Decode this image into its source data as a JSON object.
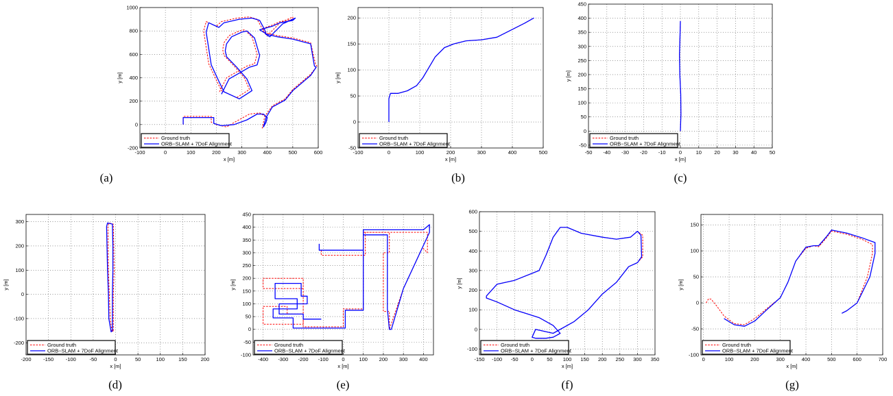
{
  "legend": {
    "ground_truth": "Ground truth",
    "estimate": "ORB−SLAM + 7DoF Alignment"
  },
  "colors": {
    "ground_truth": "#ff0000",
    "estimate": "#0000ff"
  },
  "chart_data": [
    {
      "type": "line",
      "panel_label": "(a)",
      "xlabel": "x [m]",
      "ylabel": "y [m]",
      "xlim": [
        -100,
        600
      ],
      "ylim": [
        -200,
        1000
      ],
      "xticks": [
        -100,
        0,
        100,
        200,
        300,
        400,
        500,
        600
      ],
      "yticks": [
        -200,
        0,
        200,
        400,
        600,
        800,
        1000
      ],
      "grid": true,
      "legend_position": "bottom-left",
      "series": [
        {
          "name": "Ground truth",
          "style": "dashed",
          "x": [
            70,
            70,
            180,
            180,
            200,
            240,
            280,
            330,
            370,
            400,
            395,
            380,
            390,
            420,
            470,
            500,
            570,
            595,
            590,
            570,
            500,
            440,
            400,
            380,
            420,
            450,
            500,
            500,
            450,
            400,
            390,
            380,
            360,
            330,
            280,
            220,
            200,
            180,
            160,
            150,
            170,
            200,
            220,
            280,
            330,
            310,
            270,
            230,
            225,
            230,
            250,
            290,
            310,
            340,
            360,
            350,
            320,
            280,
            240,
            210
          ],
          "y": [
            0,
            70,
            70,
            20,
            0,
            -20,
            30,
            90,
            100,
            60,
            20,
            -30,
            70,
            160,
            220,
            300,
            430,
            500,
            510,
            700,
            740,
            760,
            780,
            820,
            850,
            880,
            900,
            920,
            870,
            760,
            780,
            820,
            900,
            920,
            910,
            880,
            840,
            860,
            880,
            800,
            520,
            380,
            290,
            230,
            300,
            400,
            500,
            590,
            640,
            700,
            760,
            800,
            810,
            750,
            600,
            520,
            500,
            450,
            400,
            270
          ]
        },
        {
          "name": "ORB−SLAM + 7DoF Alignment",
          "style": "solid",
          "x": [
            70,
            70,
            190,
            190,
            220,
            270,
            320,
            360,
            385,
            400,
            395,
            385,
            395,
            420,
            470,
            500,
            570,
            592,
            585,
            570,
            500,
            440,
            400,
            370,
            420,
            450,
            500,
            510,
            460,
            410,
            395,
            390,
            370,
            340,
            290,
            230,
            210,
            190,
            170,
            160,
            180,
            210,
            230,
            290,
            340,
            320,
            280,
            240,
            235,
            240,
            260,
            300,
            320,
            350,
            370,
            360,
            330,
            290,
            250,
            220
          ],
          "y": [
            0,
            60,
            60,
            10,
            -10,
            0,
            40,
            90,
            90,
            60,
            20,
            -20,
            60,
            150,
            210,
            290,
            420,
            490,
            500,
            690,
            730,
            750,
            770,
            810,
            840,
            870,
            890,
            910,
            860,
            750,
            770,
            810,
            890,
            910,
            900,
            870,
            830,
            850,
            870,
            790,
            510,
            370,
            280,
            220,
            290,
            390,
            490,
            580,
            630,
            690,
            750,
            790,
            800,
            740,
            590,
            510,
            490,
            440,
            390,
            260
          ]
        }
      ]
    },
    {
      "type": "line",
      "panel_label": "(b)",
      "xlabel": "x [m]",
      "ylabel": "y [m]",
      "xlim": [
        -100,
        500
      ],
      "ylim": [
        -50,
        220
      ],
      "xticks": [
        -100,
        0,
        100,
        200,
        300,
        400,
        500
      ],
      "yticks": [
        -50,
        0,
        50,
        100,
        150,
        200
      ],
      "grid": true,
      "legend_position": "bottom-left",
      "series": [
        {
          "name": "Ground truth",
          "style": "dashed",
          "x": [
            0,
            0,
            5,
            30,
            60,
            90,
            110,
            130,
            150,
            180,
            210,
            250,
            300,
            350,
            400,
            440,
            470
          ],
          "y": [
            0,
            45,
            55,
            55,
            60,
            70,
            85,
            105,
            125,
            143,
            150,
            156,
            158,
            163,
            178,
            190,
            200
          ]
        },
        {
          "name": "ORB−SLAM + 7DoF Alignment",
          "style": "solid",
          "x": [
            0,
            0,
            5,
            30,
            60,
            90,
            110,
            130,
            150,
            180,
            210,
            250,
            300,
            350,
            400,
            440,
            470
          ],
          "y": [
            0,
            45,
            55,
            55,
            60,
            70,
            85,
            105,
            125,
            143,
            150,
            156,
            158,
            163,
            178,
            190,
            200
          ]
        }
      ]
    },
    {
      "type": "line",
      "panel_label": "(c)",
      "xlabel": "x [m]",
      "ylabel": "y [m]",
      "xlim": [
        -50,
        50
      ],
      "ylim": [
        -60,
        450
      ],
      "xticks": [
        -50,
        -40,
        -30,
        -20,
        -10,
        0,
        10,
        20,
        30,
        40,
        50
      ],
      "yticks": [
        -50,
        0,
        50,
        100,
        150,
        200,
        250,
        300,
        350,
        400,
        450
      ],
      "grid": true,
      "legend_position": "bottom-left",
      "series": [
        {
          "name": "Ground truth",
          "style": "dashed",
          "x": [
            0,
            0.3,
            0.2,
            -0.3,
            -0.5,
            -0.2,
            0
          ],
          "y": [
            0,
            60,
            130,
            200,
            270,
            340,
            390
          ]
        },
        {
          "name": "ORB−SLAM + 7DoF Alignment",
          "style": "solid",
          "x": [
            0,
            0.3,
            0.2,
            -0.3,
            -0.5,
            -0.2,
            0
          ],
          "y": [
            0,
            60,
            130,
            200,
            270,
            340,
            390
          ]
        }
      ]
    },
    {
      "type": "line",
      "panel_label": "(d)",
      "xlabel": "x [m]",
      "ylabel": "y [m]",
      "xlim": [
        -200,
        200
      ],
      "ylim": [
        -250,
        330
      ],
      "xticks": [
        -200,
        -150,
        -100,
        -50,
        0,
        50,
        100,
        150,
        200
      ],
      "yticks": [
        -200,
        -100,
        0,
        100,
        200,
        300
      ],
      "grid": true,
      "legend_position": "bottom-left",
      "series": [
        {
          "name": "Ground truth",
          "style": "dashed",
          "x": [
            -5,
            -5,
            -3,
            -4,
            -5,
            -15,
            -17,
            -16,
            -14,
            -12,
            -8,
            -5
          ],
          "y": [
            -150,
            0,
            100,
            200,
            290,
            295,
            280,
            100,
            0,
            -100,
            -155,
            -150
          ]
        },
        {
          "name": "ORB−SLAM + 7DoF Alignment",
          "style": "solid",
          "x": [
            -7,
            -7,
            -6,
            -6,
            -7,
            -18,
            -20,
            -18,
            -16,
            -15,
            -10,
            -7
          ],
          "y": [
            -150,
            0,
            100,
            200,
            290,
            295,
            280,
            100,
            0,
            -100,
            -155,
            -150
          ]
        }
      ]
    },
    {
      "type": "line",
      "panel_label": "(e)",
      "xlabel": "x [m]",
      "ylabel": "y [m]",
      "xlim": [
        -450,
        450
      ],
      "ylim": [
        -100,
        450
      ],
      "xticks": [
        -400,
        -300,
        -200,
        -100,
        0,
        100,
        200,
        300,
        400
      ],
      "yticks": [
        -100,
        -50,
        0,
        50,
        100,
        150,
        200,
        250,
        300,
        350,
        400,
        450
      ],
      "grid": true,
      "legend_position": "bottom-left",
      "series": [
        {
          "name": "Ground truth",
          "style": "dashed",
          "x": [
            -110,
            -110,
            110,
            110,
            420,
            420,
            395,
            300,
            230,
            230,
            200,
            200,
            230,
            230,
            210,
            100,
            100,
            0,
            0,
            -200,
            -200,
            -280,
            -280,
            -400,
            -400,
            -200,
            -200,
            -400,
            -400,
            -200
          ],
          "y": [
            310,
            290,
            290,
            380,
            380,
            300,
            320,
            160,
            0,
            70,
            70,
            300,
            300,
            380,
            380,
            380,
            80,
            80,
            10,
            10,
            60,
            60,
            90,
            90,
            20,
            20,
            200,
            200,
            160,
            160
          ]
        },
        {
          "name": "ORB−SLAM + 7DoF Alignment",
          "style": "solid",
          "x": [
            -120,
            -120,
            100,
            100,
            400,
            430,
            430,
            300,
            240,
            230,
            220,
            220,
            100,
            100,
            10,
            10,
            -250,
            -250,
            -350,
            -350,
            -230,
            -230,
            -340,
            -340,
            -210,
            -210,
            -180,
            -180,
            -320,
            -320,
            -200,
            -200,
            -110
          ],
          "y": [
            335,
            310,
            310,
            390,
            390,
            410,
            380,
            160,
            0,
            0,
            80,
            370,
            370,
            75,
            75,
            5,
            5,
            45,
            45,
            80,
            80,
            120,
            120,
            180,
            180,
            130,
            130,
            100,
            100,
            60,
            60,
            40,
            40
          ]
        }
      ]
    },
    {
      "type": "line",
      "panel_label": "(f)",
      "xlabel": "x [m]",
      "ylabel": "y [m]",
      "xlim": [
        -150,
        350
      ],
      "ylim": [
        -130,
        600
      ],
      "xticks": [
        -150,
        -100,
        -50,
        0,
        50,
        100,
        150,
        200,
        250,
        300,
        350
      ],
      "yticks": [
        -100,
        0,
        100,
        200,
        300,
        400,
        500,
        600
      ],
      "grid": true,
      "legend_position": "bottom-left",
      "series": [
        {
          "name": "Ground truth",
          "style": "dashed",
          "x": [
            10,
            0,
            10,
            60,
            120,
            160,
            200,
            240,
            275,
            300,
            315,
            315,
            300,
            280,
            240,
            200,
            140,
            100,
            80,
            60,
            40,
            20,
            -50,
            -100,
            -130,
            -130,
            -100,
            -50,
            20,
            60,
            80,
            70,
            60,
            40,
            10
          ],
          "y": [
            -45,
            -40,
            0,
            -20,
            40,
            100,
            180,
            240,
            320,
            340,
            370,
            480,
            500,
            470,
            460,
            470,
            490,
            520,
            520,
            470,
            380,
            300,
            250,
            230,
            170,
            160,
            140,
            100,
            60,
            20,
            -20,
            -30,
            -40,
            -45,
            -45
          ]
        },
        {
          "name": "ORB−SLAM + 7DoF Alignment",
          "style": "solid",
          "x": [
            10,
            0,
            10,
            60,
            120,
            160,
            200,
            240,
            275,
            300,
            312,
            310,
            300,
            280,
            240,
            200,
            140,
            100,
            80,
            60,
            40,
            20,
            -50,
            -100,
            -130,
            -130,
            -100,
            -50,
            20,
            60,
            80,
            70,
            60,
            40,
            10
          ],
          "y": [
            -45,
            -40,
            0,
            -20,
            40,
            100,
            180,
            240,
            320,
            340,
            370,
            480,
            500,
            470,
            460,
            470,
            490,
            520,
            520,
            470,
            380,
            300,
            250,
            230,
            170,
            160,
            140,
            100,
            60,
            20,
            -20,
            -30,
            -40,
            -45,
            -45
          ]
        }
      ]
    },
    {
      "type": "line",
      "panel_label": "(g)",
      "xlabel": "x [m]",
      "ylabel": "y [m]",
      "xlim": [
        -10,
        700
      ],
      "ylim": [
        -100,
        170
      ],
      "xticks": [
        0,
        100,
        200,
        300,
        400,
        500,
        600,
        700
      ],
      "yticks": [
        -100,
        -50,
        0,
        50,
        100,
        150
      ],
      "grid": true,
      "legend_position": "bottom-left",
      "series": [
        {
          "name": "Ground truth",
          "style": "dashed",
          "x": [
            10,
            20,
            30,
            50,
            80,
            120,
            160,
            200,
            250,
            300,
            330,
            360,
            400,
            430,
            450,
            480,
            500,
            520,
            560,
            620,
            660,
            660,
            640,
            600,
            560,
            540
          ],
          "y": [
            0,
            8,
            7,
            -5,
            -25,
            -40,
            -42,
            -30,
            -10,
            10,
            40,
            80,
            105,
            110,
            108,
            125,
            138,
            136,
            132,
            122,
            112,
            95,
            50,
            0,
            -15,
            -20
          ]
        },
        {
          "name": "ORB−SLAM + 7DoF Alignment",
          "style": "solid",
          "x": [
            80,
            120,
            160,
            200,
            250,
            300,
            330,
            360,
            400,
            430,
            450,
            480,
            500,
            520,
            560,
            620,
            670,
            670,
            650,
            600,
            560,
            540
          ],
          "y": [
            -30,
            -42,
            -45,
            -35,
            -12,
            10,
            40,
            80,
            107,
            110,
            110,
            127,
            140,
            138,
            134,
            125,
            116,
            95,
            50,
            0,
            -15,
            -20
          ]
        }
      ]
    }
  ]
}
